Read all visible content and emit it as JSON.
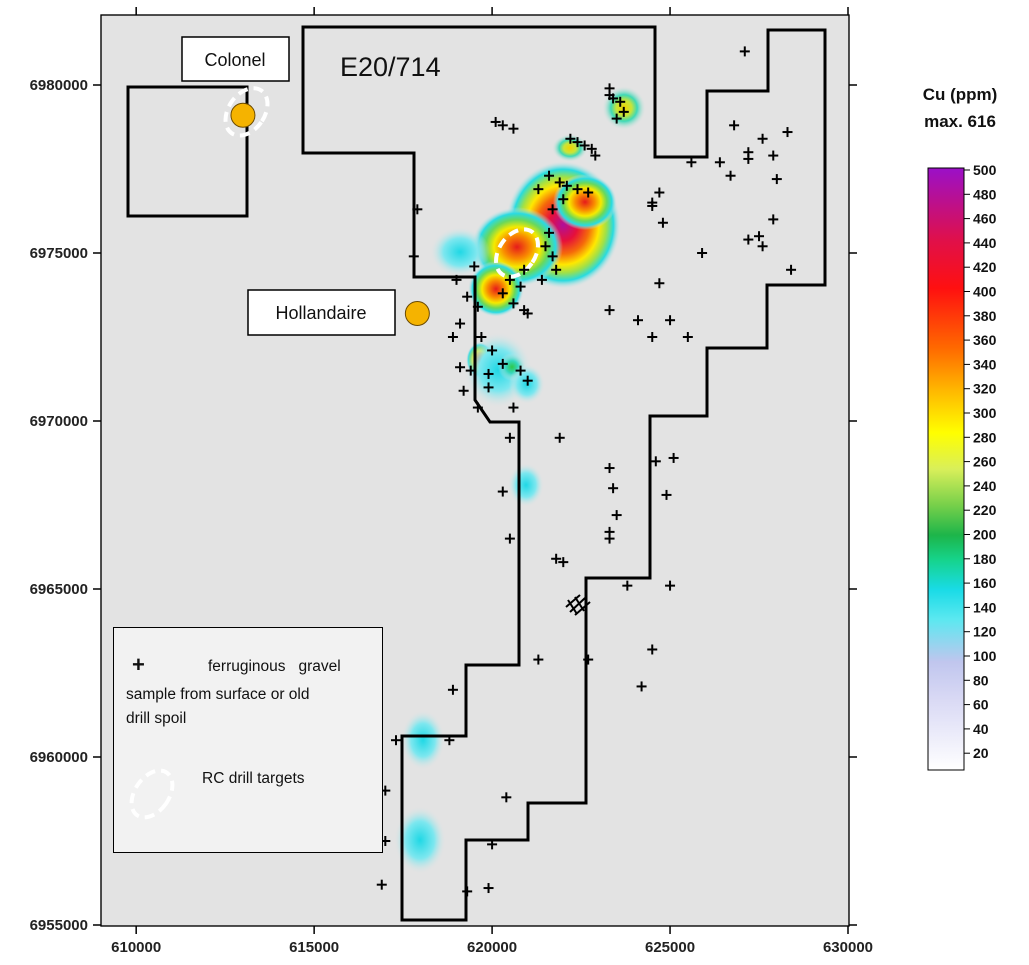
{
  "map": {
    "tenement_label": "E20/714",
    "labels": {
      "colonel": "Colonel",
      "hollandaire": "Hollandaire"
    },
    "x_ticks": [
      "610000",
      "615000",
      "620000",
      "625000",
      "630000"
    ],
    "y_ticks": [
      "6980000",
      "6975000",
      "6970000",
      "6965000",
      "6960000",
      "6955000"
    ],
    "colors": {
      "background": "#e3e3e3",
      "deposit": "#f5b300",
      "boundary": "#000000"
    }
  },
  "legend": {
    "sample_symbol": "+",
    "sample_text_1": "ferruginous   gravel",
    "sample_text_2": "sample from surface or old",
    "sample_text_3": "drill spoil",
    "targets_text": "RC drill targets"
  },
  "colorbar": {
    "title_1": "Cu (ppm)",
    "title_2": "max. 616",
    "ticks": [
      "500",
      "480",
      "460",
      "440",
      "420",
      "400",
      "380",
      "360",
      "340",
      "320",
      "300",
      "280",
      "260",
      "240",
      "220",
      "200",
      "180",
      "160",
      "140",
      "120",
      "100",
      "80",
      "60",
      "40",
      "20"
    ]
  },
  "chart_data": {
    "type": "heatmap",
    "title": "",
    "xlabel": "",
    "ylabel": "",
    "xlim": [
      608000,
      630000
    ],
    "ylim": [
      6955000,
      6982000
    ],
    "colorbar_range": [
      20,
      500
    ],
    "samples": [
      [
        627100,
        6981000
      ],
      [
        623300,
        6979900
      ],
      [
        623400,
        6979600
      ],
      [
        623600,
        6979500
      ],
      [
        623700,
        6979200
      ],
      [
        623500,
        6979000
      ],
      [
        623300,
        6979700
      ],
      [
        620100,
        6978900
      ],
      [
        620300,
        6978800
      ],
      [
        620600,
        6978700
      ],
      [
        622200,
        6978400
      ],
      [
        622400,
        6978300
      ],
      [
        622600,
        6978200
      ],
      [
        622800,
        6978100
      ],
      [
        622900,
        6977900
      ],
      [
        626800,
        6978800
      ],
      [
        627600,
        6978400
      ],
      [
        628300,
        6978600
      ],
      [
        627200,
        6978000
      ],
      [
        627200,
        6977800
      ],
      [
        627900,
        6977900
      ],
      [
        626400,
        6977700
      ],
      [
        625600,
        6977700
      ],
      [
        626700,
        6977300
      ],
      [
        628000,
        6977200
      ],
      [
        621600,
        6977300
      ],
      [
        621900,
        6977100
      ],
      [
        622100,
        6977000
      ],
      [
        622400,
        6976900
      ],
      [
        622700,
        6976800
      ],
      [
        621300,
        6976900
      ],
      [
        622000,
        6976600
      ],
      [
        621700,
        6976300
      ],
      [
        624700,
        6976800
      ],
      [
        624500,
        6976500
      ],
      [
        624500,
        6976400
      ],
      [
        627900,
        6976000
      ],
      [
        624800,
        6975900
      ],
      [
        627500,
        6975500
      ],
      [
        627600,
        6975200
      ],
      [
        627200,
        6975400
      ],
      [
        617900,
        6976300
      ],
      [
        617800,
        6974900
      ],
      [
        621600,
        6975600
      ],
      [
        621500,
        6975200
      ],
      [
        621700,
        6974900
      ],
      [
        621800,
        6974500
      ],
      [
        621400,
        6974200
      ],
      [
        620900,
        6974500
      ],
      [
        620800,
        6974000
      ],
      [
        620500,
        6974200
      ],
      [
        620300,
        6973800
      ],
      [
        620600,
        6973500
      ],
      [
        620900,
        6973300
      ],
      [
        621000,
        6973200
      ],
      [
        619500,
        6974600
      ],
      [
        619000,
        6974200
      ],
      [
        619300,
        6973700
      ],
      [
        619600,
        6973400
      ],
      [
        624700,
        6974100
      ],
      [
        625900,
        6975000
      ],
      [
        623300,
        6973300
      ],
      [
        624100,
        6973000
      ],
      [
        625000,
        6973000
      ],
      [
        625500,
        6972500
      ],
      [
        624500,
        6972500
      ],
      [
        628400,
        6974500
      ],
      [
        619100,
        6972900
      ],
      [
        618900,
        6972500
      ],
      [
        619700,
        6972500
      ],
      [
        620000,
        6972100
      ],
      [
        620300,
        6971700
      ],
      [
        619100,
        6971600
      ],
      [
        619400,
        6971500
      ],
      [
        619900,
        6971400
      ],
      [
        620800,
        6971500
      ],
      [
        621000,
        6971200
      ],
      [
        619200,
        6970900
      ],
      [
        619600,
        6970400
      ],
      [
        619900,
        6971000
      ],
      [
        620600,
        6970400
      ],
      [
        620500,
        6969500
      ],
      [
        621900,
        6969500
      ],
      [
        623300,
        6968600
      ],
      [
        624600,
        6968800
      ],
      [
        625100,
        6968900
      ],
      [
        623400,
        6968000
      ],
      [
        624900,
        6967800
      ],
      [
        620300,
        6967900
      ],
      [
        623500,
        6967200
      ],
      [
        623300,
        6966700
      ],
      [
        623300,
        6966500
      ],
      [
        620500,
        6966500
      ],
      [
        621800,
        6965900
      ],
      [
        622000,
        6965800
      ],
      [
        623800,
        6965100
      ],
      [
        625000,
        6965100
      ],
      [
        624500,
        6963200
      ],
      [
        621300,
        6962900
      ],
      [
        622700,
        6962900
      ],
      [
        624200,
        6962100
      ],
      [
        618900,
        6962000
      ],
      [
        618800,
        6960500
      ],
      [
        617300,
        6960500
      ],
      [
        617000,
        6959000
      ],
      [
        620400,
        6958800
      ],
      [
        617000,
        6957500
      ],
      [
        620000,
        6957400
      ],
      [
        619900,
        6956100
      ],
      [
        619300,
        6956000
      ],
      [
        616900,
        6956200
      ]
    ],
    "drill_targets": [
      [
        613100,
        6979200
      ],
      [
        620700,
        6975000
      ]
    ],
    "deposits": [
      [
        613000,
        6979100
      ],
      [
        617900,
        6973200
      ]
    ]
  }
}
